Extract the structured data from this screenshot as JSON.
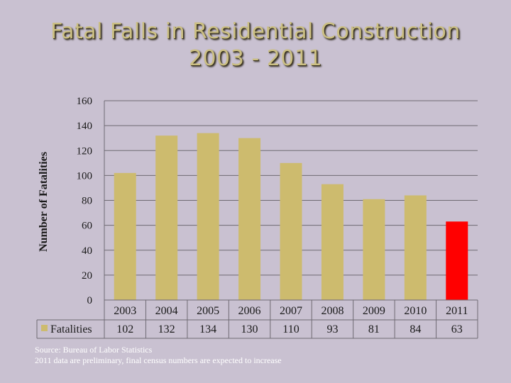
{
  "title": {
    "line1": "Fatal Falls in Residential Construction",
    "line2": "2003 - 2011"
  },
  "chart_data": {
    "type": "bar",
    "title": "Fatal Falls in Residential Construction 2003 - 2011",
    "ylabel": "Number of Fatalities",
    "xlabel": "",
    "ylim": [
      0,
      160
    ],
    "yticks": [
      0,
      20,
      40,
      60,
      80,
      100,
      120,
      140,
      160
    ],
    "grid": true,
    "categories": [
      "2003",
      "2004",
      "2005",
      "2006",
      "2007",
      "2008",
      "2009",
      "2010",
      "2011"
    ],
    "series": [
      {
        "name": "Fatalities",
        "values": [
          102,
          132,
          134,
          130,
          110,
          93,
          81,
          84,
          63
        ],
        "color": "#cdbb6e",
        "highlight_index": 8,
        "highlight_color": "#ff0000"
      }
    ],
    "data_table": true
  },
  "source": {
    "line1": "Source: Bureau of Labor Statistics",
    "line2": "2011 data are preliminary, final census numbers are expected to increase"
  }
}
